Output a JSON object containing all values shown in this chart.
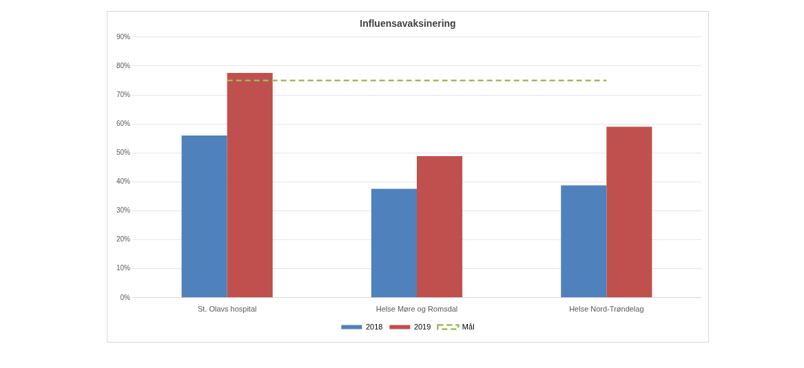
{
  "chart_data": {
    "type": "bar",
    "title": "Influensavaksinering",
    "categories": [
      "St. Olavs hospital",
      "Helse Møre og Romsdal",
      "Helse Nord-Trøndelag"
    ],
    "series": [
      {
        "name": "2018",
        "color": "#4f81bd",
        "values": [
          56,
          37.6,
          38.8
        ]
      },
      {
        "name": "2019",
        "color": "#c0504d",
        "values": [
          77.6,
          48.9,
          59
        ]
      },
      {
        "name": "Mål",
        "type": "line",
        "color": "#9bbb59",
        "line_style": "dashed",
        "marker": "none",
        "values": [
          75,
          75,
          75
        ]
      }
    ],
    "ylim": [
      0,
      90
    ],
    "yticks": [
      {
        "value": 0,
        "label": "0%"
      },
      {
        "value": 10,
        "label": "10%"
      },
      {
        "value": 20,
        "label": "20%"
      },
      {
        "value": 30,
        "label": "30%"
      },
      {
        "value": 40,
        "label": "40%"
      },
      {
        "value": 50,
        "label": "50%"
      },
      {
        "value": 60,
        "label": "60%"
      },
      {
        "value": 70,
        "label": "70%"
      },
      {
        "value": 80,
        "label": "80%"
      },
      {
        "value": 90,
        "label": "90%"
      }
    ],
    "grid": "y",
    "legend": "bottom"
  }
}
